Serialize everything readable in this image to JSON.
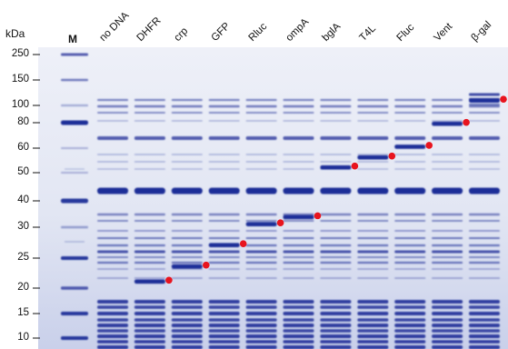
{
  "figure": {
    "unit_label": "kDa",
    "marker_lane_label": "M",
    "lanes": [
      "no DNA",
      "DHFR",
      "crp",
      "GFP",
      "Rluc",
      "ompA",
      "bglA",
      "T4L",
      "Fluc",
      "Vent",
      "β-gal"
    ],
    "mw_markers": [
      250,
      150,
      100,
      80,
      60,
      50,
      40,
      30,
      25,
      20,
      15,
      10
    ],
    "expressed_band_kda": {
      "DHFR": 21,
      "crp": 23.5,
      "GFP": 27,
      "Rluc": 31,
      "ompA": 33.5,
      "bglA": 52,
      "T4L": 56,
      "Fluc": 61,
      "Vent": 79,
      "β-gal": 108
    },
    "colors": {
      "gel_background": "#e2e6f3",
      "band": "#1f2f98",
      "highlight_dot": "#e8141e"
    }
  }
}
